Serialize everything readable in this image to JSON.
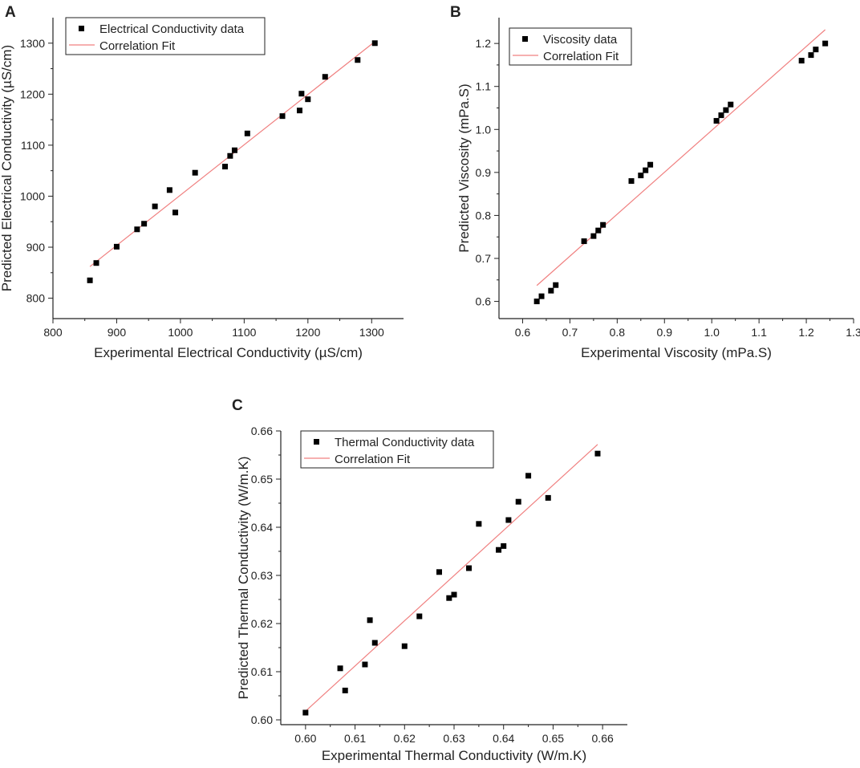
{
  "figure_labels": [
    "A",
    "B",
    "C"
  ],
  "colors": {
    "marker": "#000000",
    "fit_line": "#f08080",
    "axis": "#222222"
  },
  "chart_data": [
    {
      "panel": "A",
      "type": "scatter",
      "xlabel": "Experimental Electrical Conductivity (µS/cm)",
      "ylabel": "Predicted Electrical Conductivity (µS/cm)",
      "xlim": [
        800,
        1350
      ],
      "ylim": [
        760,
        1350
      ],
      "xticks": [
        800,
        900,
        1000,
        1100,
        1200,
        1300
      ],
      "xtick_labels": [
        "800",
        "900",
        "1000",
        "1100",
        "1200",
        "1300"
      ],
      "yticks": [
        800,
        900,
        1000,
        1100,
        1200,
        1300
      ],
      "ytick_labels": [
        "800",
        "900",
        "1000",
        "1100",
        "1200",
        "1300"
      ],
      "legend": [
        "Electrical Conductivity data",
        "Correlation Fit"
      ],
      "legend_position": "top-left",
      "series": [
        {
          "name": "Electrical Conductivity data",
          "x": [
            858,
            868,
            900,
            932,
            943,
            960,
            983,
            992,
            1023,
            1070,
            1078,
            1085,
            1105,
            1160,
            1187,
            1190,
            1200,
            1227,
            1278,
            1305
          ],
          "y": [
            835,
            869,
            901,
            935,
            946,
            980,
            1012,
            968,
            1046,
            1058,
            1079,
            1090,
            1123,
            1157,
            1168,
            1201,
            1190,
            1234,
            1267,
            1300
          ]
        },
        {
          "name": "Correlation Fit",
          "line": {
            "x": [
              858,
              1305
            ],
            "y": [
              862,
              1303
            ]
          }
        }
      ]
    },
    {
      "panel": "B",
      "type": "scatter",
      "xlabel": "Experimental Viscosity (mPa.S)",
      "ylabel": "Predicted Viscosity (mPa.S)",
      "xlim": [
        0.55,
        1.3
      ],
      "ylim": [
        0.56,
        1.26
      ],
      "xticks": [
        0.6,
        0.7,
        0.8,
        0.9,
        1.0,
        1.1,
        1.2,
        1.3
      ],
      "xtick_labels": [
        "0.6",
        "0.7",
        "0.8",
        "0.9",
        "1.0",
        "1.1",
        "1.2",
        "1.3"
      ],
      "yticks": [
        0.6,
        0.7,
        0.8,
        0.9,
        1.0,
        1.1,
        1.2
      ],
      "ytick_labels": [
        "0.6",
        "0.7",
        "0.8",
        "0.9",
        "1.0",
        "1.1",
        "1.2"
      ],
      "legend": [
        "Viscosity data",
        "Correlation Fit"
      ],
      "legend_position": "top-left",
      "series": [
        {
          "name": "Viscosity data",
          "x": [
            0.63,
            0.64,
            0.66,
            0.67,
            0.73,
            0.75,
            0.76,
            0.77,
            0.83,
            0.85,
            0.86,
            0.87,
            1.01,
            1.02,
            1.03,
            1.04,
            1.19,
            1.21,
            1.22,
            1.24
          ],
          "y": [
            0.6,
            0.612,
            0.625,
            0.638,
            0.74,
            0.752,
            0.765,
            0.778,
            0.88,
            0.893,
            0.905,
            0.918,
            1.02,
            1.033,
            1.045,
            1.058,
            1.16,
            1.173,
            1.186,
            1.2
          ]
        },
        {
          "name": "Correlation Fit",
          "line": {
            "x": [
              0.63,
              1.24
            ],
            "y": [
              0.637,
              1.232
            ]
          }
        }
      ]
    },
    {
      "panel": "C",
      "type": "scatter",
      "xlabel": "Experimental Thermal Conductivity (W/m.K)",
      "ylabel": "Predicted Thermal Conductivity (W/m.K)",
      "xlim": [
        0.595,
        0.665
      ],
      "ylim": [
        0.599,
        0.66
      ],
      "xticks": [
        0.6,
        0.61,
        0.62,
        0.63,
        0.64,
        0.65,
        0.66
      ],
      "xtick_labels": [
        "0.60",
        "0.61",
        "0.62",
        "0.63",
        "0.64",
        "0.65",
        "0.66"
      ],
      "yticks": [
        0.6,
        0.61,
        0.62,
        0.63,
        0.64,
        0.65,
        0.66
      ],
      "ytick_labels": [
        "0.60",
        "0.61",
        "0.62",
        "0.63",
        "0.64",
        "0.65",
        "0.66"
      ],
      "legend": [
        "Thermal Conductivity data",
        "Correlation Fit"
      ],
      "legend_position": "top-left",
      "series": [
        {
          "name": "Thermal Conductivity data",
          "x": [
            0.6,
            0.607,
            0.608,
            0.612,
            0.613,
            0.614,
            0.62,
            0.623,
            0.627,
            0.629,
            0.63,
            0.633,
            0.635,
            0.639,
            0.64,
            0.641,
            0.643,
            0.645,
            0.649,
            0.659
          ],
          "y": [
            0.6015,
            0.6107,
            0.6061,
            0.6115,
            0.6207,
            0.616,
            0.6153,
            0.6215,
            0.6307,
            0.6253,
            0.626,
            0.6315,
            0.6407,
            0.6353,
            0.6361,
            0.6415,
            0.6453,
            0.6507,
            0.6461,
            0.6553
          ]
        },
        {
          "name": "Correlation Fit",
          "line": {
            "x": [
              0.6,
              0.659
            ],
            "y": [
              0.6018,
              0.6572
            ]
          }
        }
      ]
    }
  ]
}
